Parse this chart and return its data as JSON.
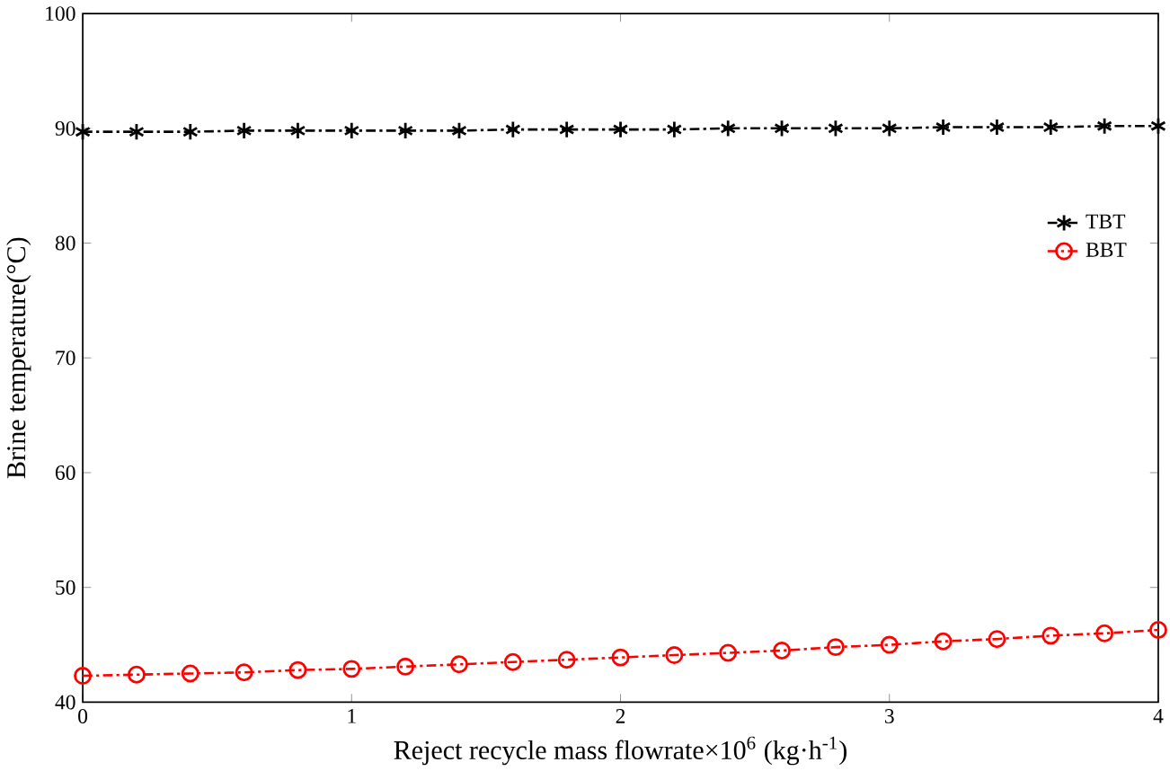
{
  "chart_data": {
    "type": "line",
    "xlabel": "Reject recycle mass flowrate×10$^{6}$ (kg·h$^{-1}$)",
    "ylabel": "Brine temperature(°C)",
    "x": [
      0,
      0.2,
      0.4,
      0.6,
      0.8,
      1,
      1.2,
      1.4,
      1.6,
      1.8,
      2,
      2.2,
      2.4,
      2.6,
      2.8,
      3,
      3.2,
      3.4,
      3.6,
      3.8,
      4
    ],
    "series": [
      {
        "name": "TBT",
        "color": "#000000",
        "marker": "cross",
        "values": [
          89.7,
          89.7,
          89.7,
          89.8,
          89.8,
          89.8,
          89.8,
          89.8,
          89.9,
          89.9,
          89.9,
          89.9,
          90.0,
          90.0,
          90.0,
          90.0,
          90.1,
          90.1,
          90.1,
          90.2,
          90.2
        ]
      },
      {
        "name": "BBT",
        "color": "#ff0000",
        "marker": "circle",
        "values": [
          42.3,
          42.4,
          42.5,
          42.6,
          42.8,
          42.9,
          43.1,
          43.3,
          43.5,
          43.7,
          43.9,
          44.1,
          44.3,
          44.5,
          44.8,
          45.0,
          45.3,
          45.5,
          45.8,
          46.0,
          46.3
        ]
      }
    ],
    "xlim": [
      0,
      4
    ],
    "ylim": [
      40,
      100
    ],
    "xticks": [
      0,
      1,
      2,
      3,
      4
    ],
    "yticks": [
      40,
      50,
      60,
      70,
      80,
      90,
      100
    ],
    "legend": "top right",
    "line_style": "dashed",
    "grid": false
  }
}
